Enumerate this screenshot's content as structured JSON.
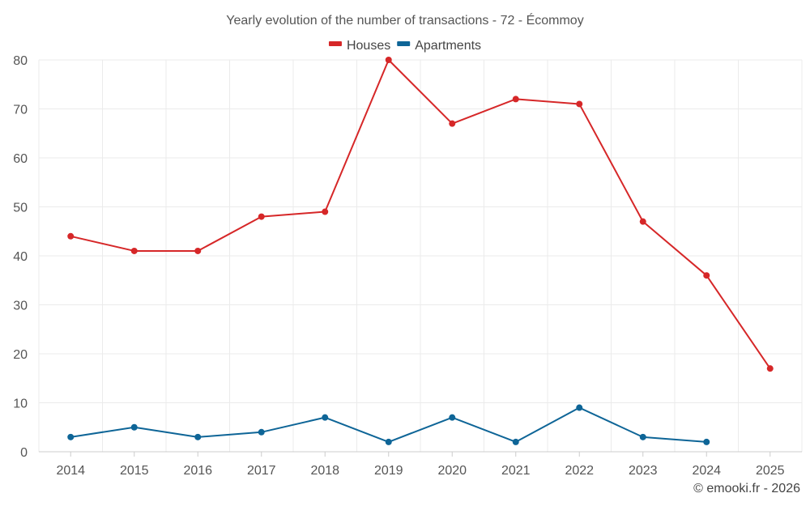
{
  "chart_data": {
    "type": "line",
    "title": "Yearly evolution of the number of transactions - 72 - Écommoy",
    "categories": [
      "2014",
      "2015",
      "2016",
      "2017",
      "2018",
      "2019",
      "2020",
      "2021",
      "2022",
      "2023",
      "2024",
      "2025"
    ],
    "ylim": [
      0,
      80
    ],
    "yticks": [
      0,
      10,
      20,
      30,
      40,
      50,
      60,
      70,
      80
    ],
    "xlabel": "",
    "ylabel": "",
    "grid": true,
    "legend_position": "top-center",
    "series": [
      {
        "name": "Houses",
        "color": "#d62728",
        "values": [
          44,
          41,
          41,
          48,
          49,
          80,
          67,
          72,
          71,
          47,
          36,
          17
        ]
      },
      {
        "name": "Apartments",
        "color": "#0e6597",
        "values": [
          3,
          5,
          3,
          4,
          7,
          2,
          7,
          2,
          9,
          3,
          2,
          null
        ]
      }
    ]
  },
  "credit": "© emooki.fr - 2026"
}
